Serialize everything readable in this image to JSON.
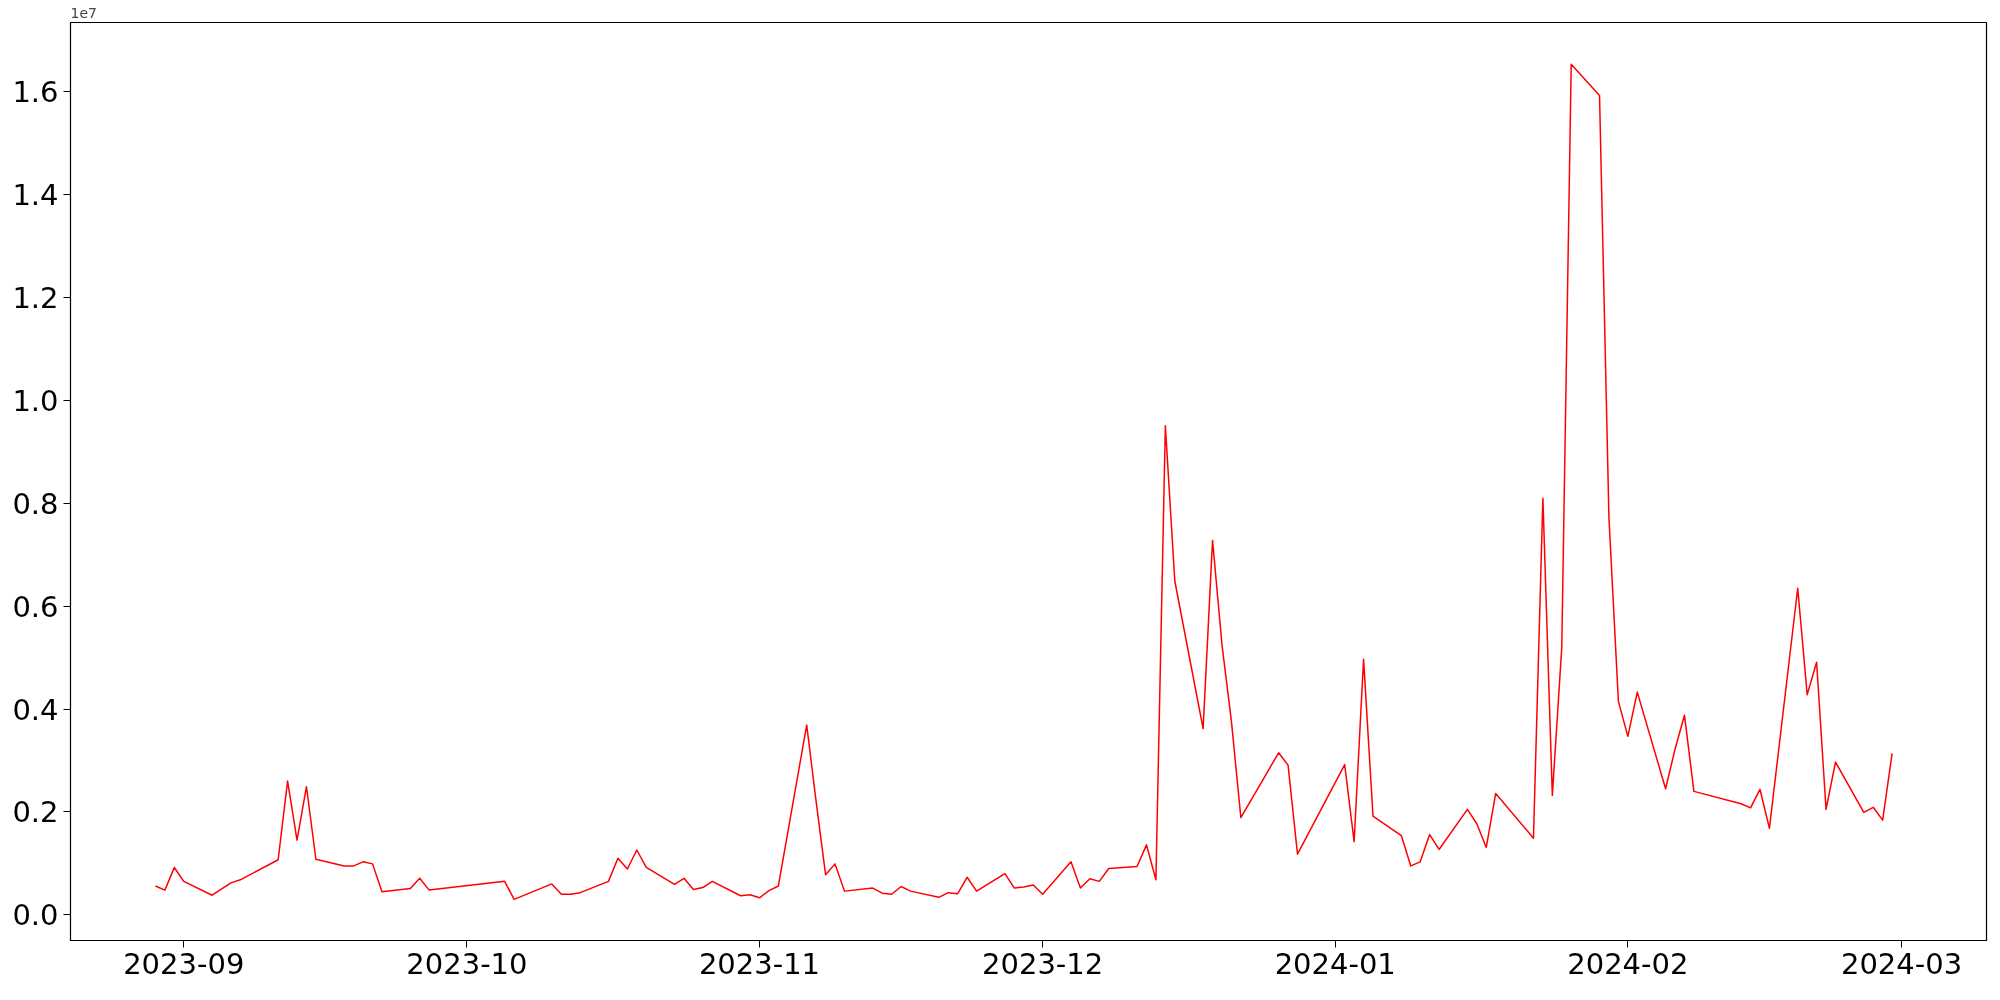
{
  "chart_data": {
    "type": "line",
    "annotations": [
      "1e7"
    ],
    "x": [
      "2023-08-29",
      "2023-08-30",
      "2023-08-31",
      "2023-09-01",
      "2023-09-04",
      "2023-09-06",
      "2023-09-07",
      "2023-09-11",
      "2023-09-12",
      "2023-09-13",
      "2023-09-14",
      "2023-09-15",
      "2023-09-18",
      "2023-09-19",
      "2023-09-20",
      "2023-09-21",
      "2023-09-22",
      "2023-09-25",
      "2023-09-26",
      "2023-09-27",
      "2023-10-05",
      "2023-10-06",
      "2023-10-10",
      "2023-10-11",
      "2023-10-12",
      "2023-10-13",
      "2023-10-16",
      "2023-10-17",
      "2023-10-18",
      "2023-10-19",
      "2023-10-20",
      "2023-10-23",
      "2023-10-24",
      "2023-10-25",
      "2023-10-26",
      "2023-10-27",
      "2023-10-30",
      "2023-10-31",
      "2023-11-01",
      "2023-11-02",
      "2023-11-03",
      "2023-11-06",
      "2023-11-07",
      "2023-11-08",
      "2023-11-09",
      "2023-11-10",
      "2023-11-13",
      "2023-11-14",
      "2023-11-15",
      "2023-11-16",
      "2023-11-17",
      "2023-11-20",
      "2023-11-21",
      "2023-11-22",
      "2023-11-23",
      "2023-11-24",
      "2023-11-27",
      "2023-11-28",
      "2023-11-29",
      "2023-11-30",
      "2023-12-01",
      "2023-12-04",
      "2023-12-05",
      "2023-12-06",
      "2023-12-07",
      "2023-12-08",
      "2023-12-11",
      "2023-12-12",
      "2023-12-13",
      "2023-12-14",
      "2023-12-15",
      "2023-12-18",
      "2023-12-19",
      "2023-12-20",
      "2023-12-21",
      "2023-12-22",
      "2023-12-26",
      "2023-12-27",
      "2023-12-28",
      "2024-01-02",
      "2024-01-03",
      "2024-01-04",
      "2024-01-05",
      "2024-01-08",
      "2024-01-09",
      "2024-01-10",
      "2024-01-11",
      "2024-01-12",
      "2024-01-15",
      "2024-01-16",
      "2024-01-17",
      "2024-01-18",
      "2024-01-22",
      "2024-01-23",
      "2024-01-24",
      "2024-01-25",
      "2024-01-26",
      "2024-01-29",
      "2024-01-30",
      "2024-01-31",
      "2024-02-01",
      "2024-02-02",
      "2024-02-05",
      "2024-02-06",
      "2024-02-07",
      "2024-02-08",
      "2024-02-13",
      "2024-02-14",
      "2024-02-15",
      "2024-02-16",
      "2024-02-19",
      "2024-02-20",
      "2024-02-21",
      "2024-02-22",
      "2024-02-23",
      "2024-02-26",
      "2024-02-27",
      "2024-02-28",
      "2024-02-29"
    ],
    "series": [
      {
        "color": "#ff0000",
        "values": [
          0.056,
          0.048,
          0.092,
          0.065,
          0.038,
          0.062,
          0.068,
          0.107,
          0.26,
          0.145,
          0.249,
          0.108,
          0.095,
          0.095,
          0.103,
          0.099,
          0.045,
          0.051,
          0.071,
          0.048,
          0.065,
          0.03,
          0.06,
          0.04,
          0.04,
          0.043,
          0.065,
          0.11,
          0.089,
          0.126,
          0.092,
          0.059,
          0.071,
          0.049,
          0.053,
          0.065,
          0.037,
          0.039,
          0.033,
          0.047,
          0.056,
          0.369,
          0.22,
          0.078,
          0.099,
          0.046,
          0.052,
          0.042,
          0.04,
          0.055,
          0.046,
          0.034,
          0.043,
          0.041,
          0.073,
          0.046,
          0.08,
          0.052,
          0.054,
          0.058,
          0.04,
          0.103,
          0.052,
          0.07,
          0.065,
          0.09,
          0.094,
          0.136,
          0.068,
          0.951,
          0.649,
          0.362,
          0.728,
          0.525,
          0.376,
          0.189,
          0.315,
          0.291,
          0.118,
          0.292,
          0.142,
          0.497,
          0.192,
          0.154,
          0.095,
          0.103,
          0.156,
          0.127,
          0.205,
          0.177,
          0.131,
          0.236,
          0.149,
          0.81,
          0.232,
          0.52,
          1.654,
          1.593,
          0.771,
          0.415,
          0.347,
          0.433,
          0.245,
          0.322,
          0.388,
          0.24,
          0.216,
          0.208,
          0.244,
          0.168,
          0.635,
          0.428,
          0.491,
          0.205,
          0.297,
          0.199,
          0.209,
          0.184,
          0.314
        ]
      }
    ],
    "xlim": [
      "2023-08-20",
      "2024-03-10"
    ],
    "xticks": [
      {
        "value": "2023-09-01",
        "label": "2023-09"
      },
      {
        "value": "2023-10-01",
        "label": "2023-10"
      },
      {
        "value": "2023-11-01",
        "label": "2023-11"
      },
      {
        "value": "2023-12-01",
        "label": "2023-12"
      },
      {
        "value": "2024-01-01",
        "label": "2024-01"
      },
      {
        "value": "2024-02-01",
        "label": "2024-02"
      },
      {
        "value": "2024-03-01",
        "label": "2024-03"
      }
    ],
    "ylim": [
      -0.05,
      1.735
    ],
    "yticks": [
      {
        "value": 0,
        "label": "0.0"
      },
      0.2,
      0.4,
      0.6,
      0.8,
      {
        "value": 1,
        "label": "1.0"
      },
      1.2,
      1.4,
      1.6
    ],
    "grid": false,
    "marker": "none",
    "line_style": "solid"
  }
}
